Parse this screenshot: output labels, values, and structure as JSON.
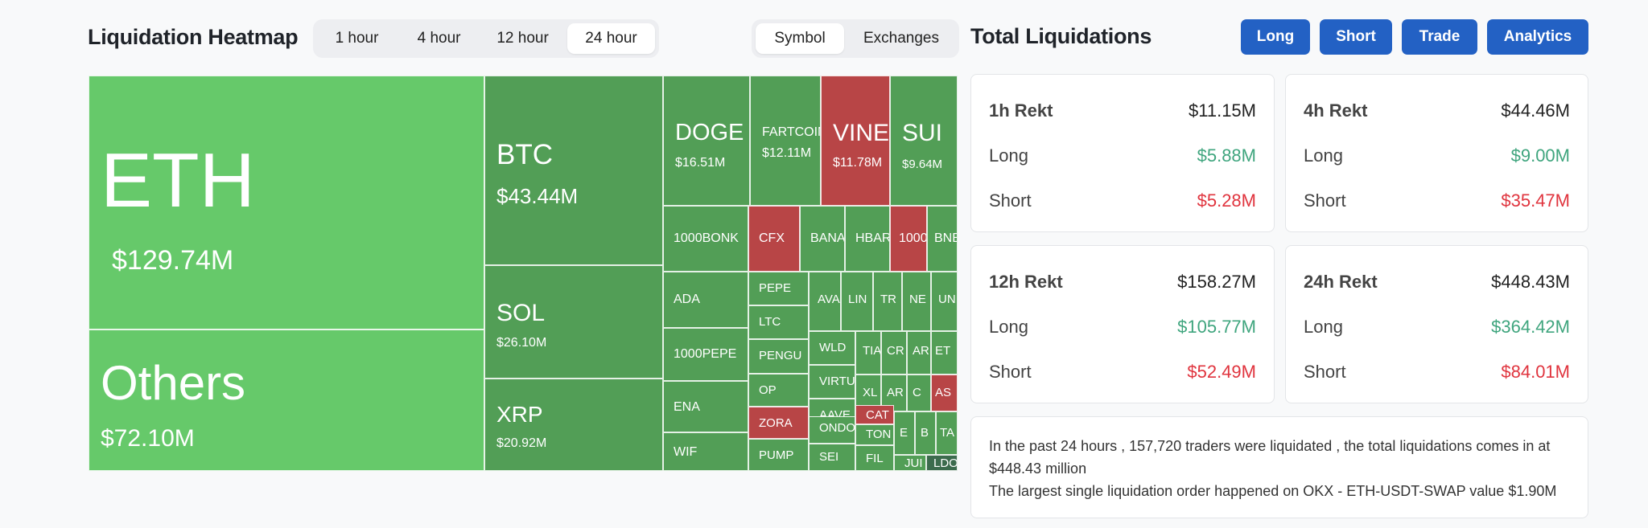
{
  "heatmap": {
    "title": "Liquidation Heatmap",
    "timeframes": [
      "1 hour",
      "4 hour",
      "12 hour",
      "24 hour"
    ],
    "active_timeframe": "24 hour",
    "views": [
      "Symbol",
      "Exchanges"
    ],
    "active_view": "Symbol",
    "colors": {
      "long_heavy": "#66c96a",
      "mixed": "#529e56",
      "short_heavy": "#b84546",
      "dark": "#3c6b4d"
    },
    "tiles": [
      {
        "symbol": "ETH",
        "value": "$129.74M"
      },
      {
        "symbol": "Others",
        "value": "$72.10M"
      },
      {
        "symbol": "BTC",
        "value": "$43.44M"
      },
      {
        "symbol": "SOL",
        "value": "$26.10M"
      },
      {
        "symbol": "XRP",
        "value": "$20.92M"
      },
      {
        "symbol": "DOGE",
        "value": "$16.51M"
      },
      {
        "symbol": "FARTCOIN",
        "value": "$12.11M"
      },
      {
        "symbol": "VINE",
        "value": "$11.78M"
      },
      {
        "symbol": "SUI",
        "value": "$9.64M"
      },
      {
        "symbol": "1000BONK",
        "value": ""
      },
      {
        "symbol": "CFX",
        "value": ""
      },
      {
        "symbol": "BANA",
        "value": ""
      },
      {
        "symbol": "HBAR",
        "value": ""
      },
      {
        "symbol": "1000",
        "value": ""
      },
      {
        "symbol": "BNB",
        "value": ""
      },
      {
        "symbol": "ADA",
        "value": ""
      },
      {
        "symbol": "1000PEPE",
        "value": ""
      },
      {
        "symbol": "ENA",
        "value": ""
      },
      {
        "symbol": "WIF",
        "value": ""
      },
      {
        "symbol": "PEPE",
        "value": ""
      },
      {
        "symbol": "LTC",
        "value": ""
      },
      {
        "symbol": "PENGU",
        "value": ""
      },
      {
        "symbol": "OP",
        "value": ""
      },
      {
        "symbol": "ZORA",
        "value": ""
      },
      {
        "symbol": "PUMP",
        "value": ""
      },
      {
        "symbol": "AVA",
        "value": ""
      },
      {
        "symbol": "LIN",
        "value": ""
      },
      {
        "symbol": "TR",
        "value": ""
      },
      {
        "symbol": "NE",
        "value": ""
      },
      {
        "symbol": "UN",
        "value": ""
      },
      {
        "symbol": "WLD",
        "value": ""
      },
      {
        "symbol": "TIA",
        "value": ""
      },
      {
        "symbol": "CR",
        "value": ""
      },
      {
        "symbol": "AR",
        "value": ""
      },
      {
        "symbol": "ET",
        "value": ""
      },
      {
        "symbol": "VIRTU",
        "value": ""
      },
      {
        "symbol": "XL",
        "value": ""
      },
      {
        "symbol": "AR",
        "value": ""
      },
      {
        "symbol": "C",
        "value": ""
      },
      {
        "symbol": "AS",
        "value": ""
      },
      {
        "symbol": "AAVE",
        "value": ""
      },
      {
        "symbol": "CAT",
        "value": ""
      },
      {
        "symbol": "ONDO",
        "value": ""
      },
      {
        "symbol": "TON",
        "value": ""
      },
      {
        "symbol": "E",
        "value": ""
      },
      {
        "symbol": "B",
        "value": ""
      },
      {
        "symbol": "TA",
        "value": ""
      },
      {
        "symbol": "SEI",
        "value": ""
      },
      {
        "symbol": "FIL",
        "value": ""
      },
      {
        "symbol": "JUI",
        "value": ""
      },
      {
        "symbol": "LDO",
        "value": ""
      }
    ]
  },
  "totals": {
    "title": "Total Liquidations",
    "buttons": [
      "Long",
      "Short",
      "Trade",
      "Analytics"
    ],
    "cards": [
      {
        "label": "1h Rekt",
        "total": "$11.15M",
        "long_label": "Long",
        "long": "$5.88M",
        "short_label": "Short",
        "short": "$5.28M"
      },
      {
        "label": "4h Rekt",
        "total": "$44.46M",
        "long_label": "Long",
        "long": "$9.00M",
        "short_label": "Short",
        "short": "$35.47M"
      },
      {
        "label": "12h Rekt",
        "total": "$158.27M",
        "long_label": "Long",
        "long": "$105.77M",
        "short_label": "Short",
        "short": "$52.49M"
      },
      {
        "label": "24h Rekt",
        "total": "$448.43M",
        "long_label": "Long",
        "long": "$364.42M",
        "short_label": "Short",
        "short": "$84.01M"
      }
    ],
    "summary_line1": "In the past 24 hours , 157,720 traders were liquidated , the total liquidations comes in at $448.43 million",
    "summary_line2": "The largest single liquidation order happened on OKX - ETH-USDT-SWAP value $1.90M"
  }
}
